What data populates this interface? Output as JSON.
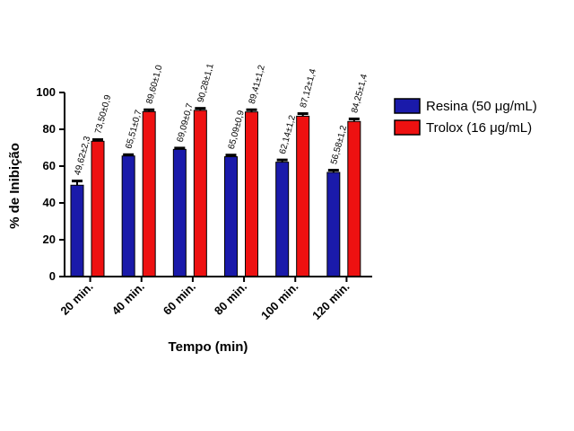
{
  "chart_data": {
    "type": "bar",
    "title": "",
    "xlabel": "Tempo (min)",
    "ylabel": "% de Inibição",
    "ylim": [
      0,
      100
    ],
    "yticks": [
      0,
      20,
      40,
      60,
      80,
      100
    ],
    "grid": false,
    "legend_position": "top-right",
    "categories": [
      "20 min.",
      "40 min.",
      "60 min.",
      "80 min.",
      "100 min.",
      "120 min."
    ],
    "series": [
      {
        "name": "Resina (50 μg/mL)",
        "color": "#1a1aaa",
        "values": [
          49.62,
          65.51,
          69.09,
          65.09,
          62.14,
          56.58
        ],
        "errors": [
          2.3,
          0.7,
          0.7,
          0.9,
          1.2,
          1.2
        ],
        "labels": [
          "49,62±2,3",
          "65,51±0,7",
          "69,09±0,7",
          "65,09±0,9",
          "62,14±1,2",
          "56,58±1,2"
        ]
      },
      {
        "name": "Trolox (16 μg/mL)",
        "color": "#ee1111",
        "values": [
          73.5,
          89.6,
          90.28,
          89.41,
          87.12,
          84.25
        ],
        "errors": [
          0.9,
          1.0,
          1.1,
          1.2,
          1.4,
          1.4
        ],
        "labels": [
          "73,50±0,9",
          "89,60±1,0",
          "90,28±1,1",
          "89,41±1,2",
          "87,12±1,4",
          "84,25±1,4"
        ]
      }
    ]
  }
}
